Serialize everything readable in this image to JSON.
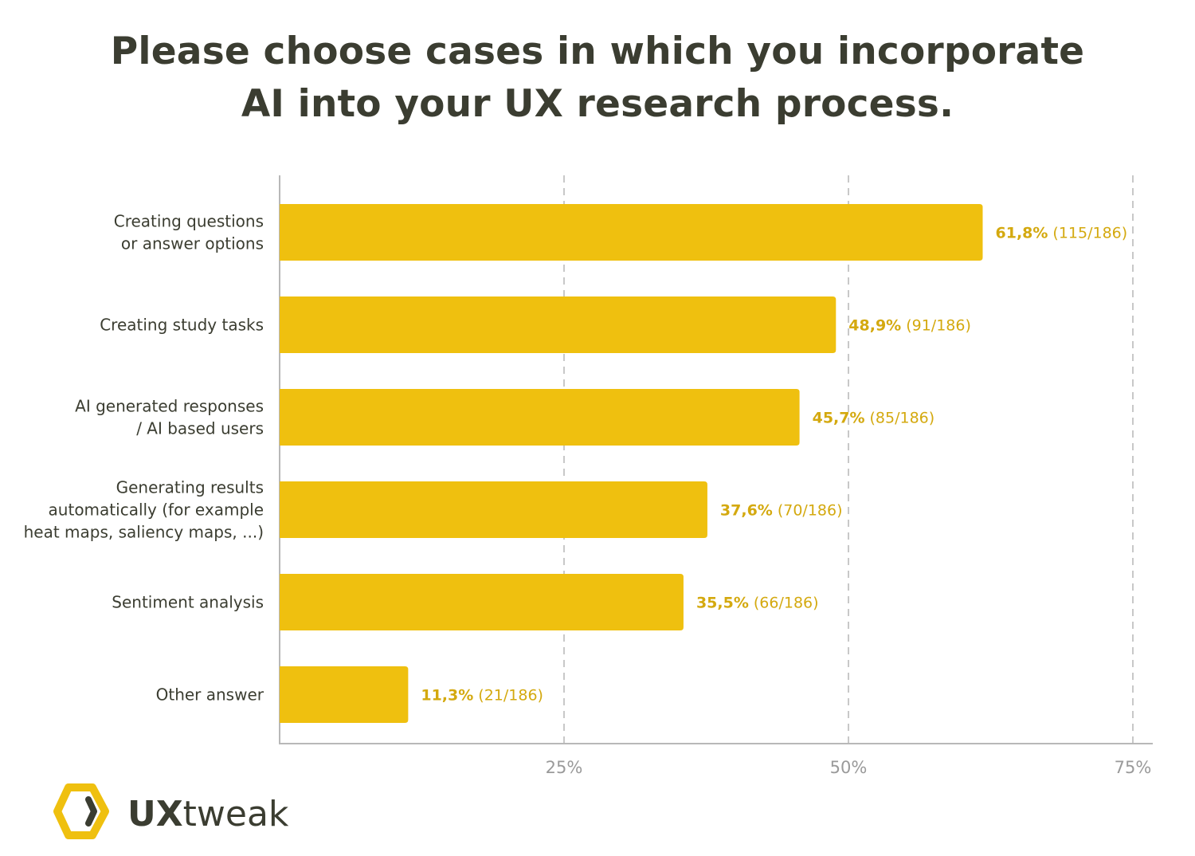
{
  "chart_data": {
    "type": "bar",
    "orientation": "horizontal",
    "title_lines": [
      "Please choose cases in which you incorporate",
      "AI into your UX research process."
    ],
    "categories": [
      [
        "Creating questions",
        "or answer options"
      ],
      [
        "Creating study tasks"
      ],
      [
        "AI generated responses",
        "/ AI based users"
      ],
      [
        "Generating results",
        "automatically (for example",
        "heat maps, saliency maps, ...)"
      ],
      [
        "Sentiment analysis"
      ],
      [
        "Other answer"
      ]
    ],
    "values": [
      61.8,
      48.9,
      45.7,
      37.6,
      35.5,
      11.3
    ],
    "value_labels": [
      "61,8%",
      "48,9%",
      "45,7%",
      "37,6%",
      "35,5%",
      "11,3%"
    ],
    "count_labels": [
      "(115/186)",
      "(91/186)",
      "(85/186)",
      "(70/186)",
      "(66/186)",
      "(21/186)"
    ],
    "xlim": [
      0,
      75
    ],
    "xticks": [
      25,
      50,
      75
    ],
    "xtick_labels": [
      "25%",
      "50%",
      "75%"
    ],
    "grid": "vertical dashed",
    "legend": "none",
    "colors": {
      "bar": "#efc00f",
      "value_label": "#d4a90f",
      "text": "#3b3d31",
      "grid": "#c8c8c8",
      "tick": "#9a9a9a"
    }
  },
  "logo": {
    "text_bold": "UX",
    "text_regular": "tweak",
    "hex_color": "#efc00f",
    "text_color": "#3b3d31"
  }
}
